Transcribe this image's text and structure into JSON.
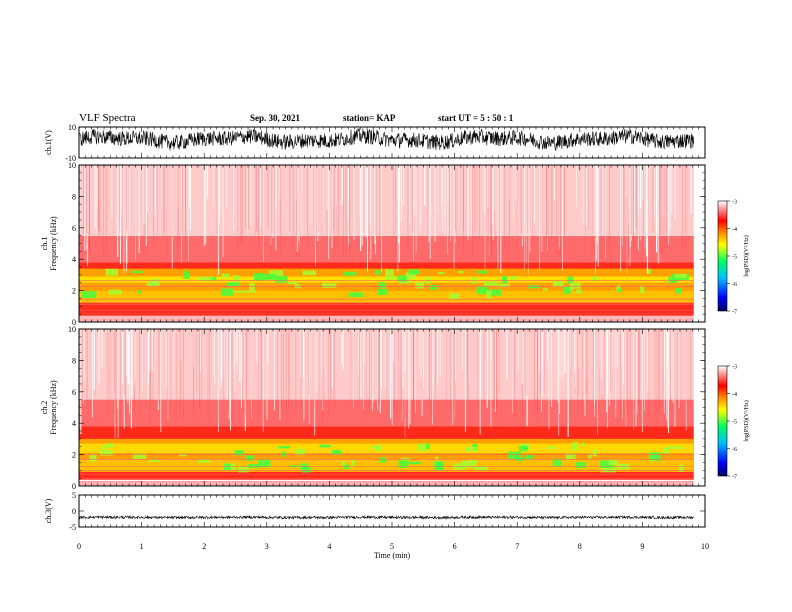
{
  "header": {
    "title": "VLF Spectra",
    "date": "Sep. 30, 2021",
    "station": "station= KAP",
    "start": "start  UT =   5 : 50 : 1"
  },
  "colors": {
    "waveform": "#000000",
    "colormap": [
      "#000080",
      "#0000ff",
      "#00bfff",
      "#00ff80",
      "#ffff00",
      "#ff8000",
      "#ff0000",
      "#ffffff"
    ]
  },
  "chart_data": [
    {
      "type": "line",
      "ylabel": "ch.1(V)",
      "ylim": [
        -10,
        10
      ],
      "yticks": [
        "10",
        "-10"
      ],
      "x_range_min": [
        0,
        9.8
      ],
      "description_values": {
        "mean": 2,
        "spread": 5
      }
    },
    {
      "type": "heatmap",
      "ylabel": "ch.1",
      "ylabel2": "Frequency (kHz)",
      "ylim": [
        0,
        10
      ],
      "yticks": [
        "0",
        "2",
        "4",
        "6",
        "8",
        "10"
      ],
      "colorbar": {
        "label": "log(PSD)(V²/Hz)",
        "ticks": [
          "-3",
          "-4",
          "-5",
          "-6",
          "-7"
        ],
        "range": [
          -7,
          -3
        ]
      }
    },
    {
      "type": "heatmap",
      "ylabel": "ch.2",
      "ylabel2": "Frequency (kHz)",
      "ylim": [
        0,
        10
      ],
      "yticks": [
        "0",
        "2",
        "4",
        "6",
        "8",
        "10"
      ],
      "colorbar": {
        "label": "log(PSD)(V²/Hz)",
        "ticks": [
          "-3",
          "-4",
          "-5",
          "-6",
          "-7"
        ],
        "range": [
          -7,
          -3
        ]
      }
    },
    {
      "type": "line",
      "ylabel": "ch.3(V)",
      "ylim": [
        -5,
        5
      ],
      "yticks": [
        "5",
        "0",
        "-5"
      ],
      "description_values": {
        "mean": -2,
        "spread": 0.4
      }
    }
  ],
  "xaxis": {
    "label": "Time (min)",
    "ticks": [
      "0",
      "1",
      "2",
      "3",
      "4",
      "5",
      "6",
      "7",
      "8",
      "9",
      "10"
    ],
    "xlim": [
      0,
      10
    ],
    "data_end": 9.82
  }
}
